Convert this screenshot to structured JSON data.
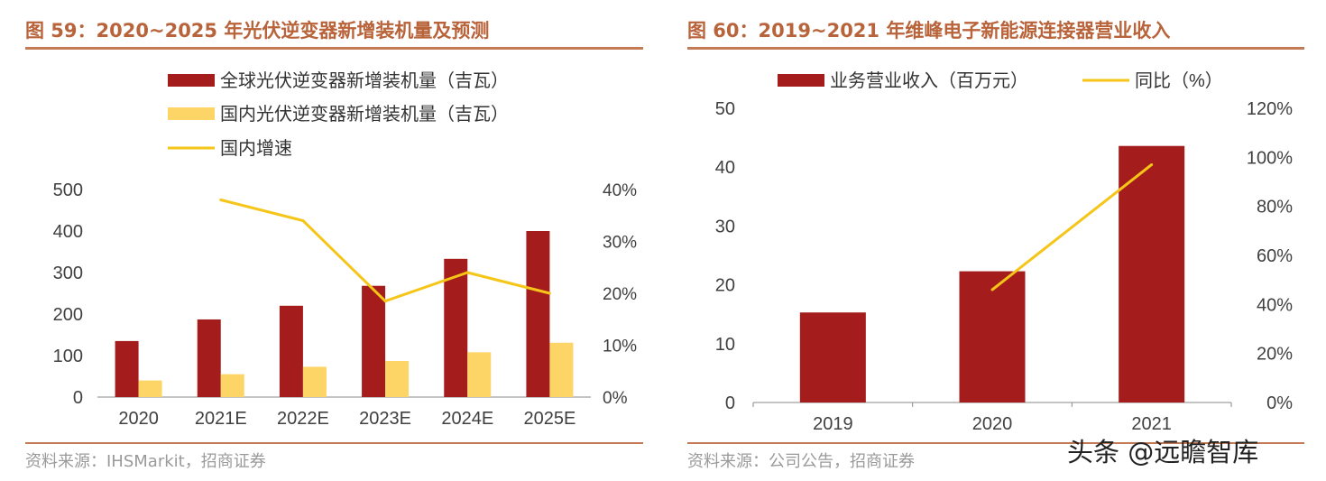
{
  "left": {
    "title": "图 59：2020~2025 年光伏逆变器新增装机量及预测",
    "source": "资料来源：IHSMarkit，招商证券"
  },
  "right": {
    "title": "图 60：2019~2021 年维峰电子新能源连接器营业收入",
    "source": "资料来源：公司公告，招商证券"
  },
  "watermark": "头条 @远瞻智库",
  "colors": {
    "bar_primary": "#a51c1c",
    "bar_secondary": "#fdd466",
    "line": "#f5c518",
    "title": "#b8633a"
  },
  "chart_data": [
    {
      "type": "bar",
      "categories": [
        "2020",
        "2021E",
        "2022E",
        "2023E",
        "2024E",
        "2025E"
      ],
      "series": [
        {
          "name": "全球光伏逆变器新增装机量（吉瓦）",
          "type": "bar",
          "axis": "left",
          "values": [
            135,
            187,
            220,
            268,
            333,
            400
          ]
        },
        {
          "name": "国内光伏逆变器新增装机量（吉瓦）",
          "type": "bar",
          "axis": "left",
          "values": [
            40,
            55,
            73,
            87,
            108,
            131
          ]
        },
        {
          "name": "国内增速",
          "type": "line",
          "axis": "right",
          "values": [
            null,
            38,
            34,
            18.5,
            24,
            20
          ]
        }
      ],
      "y_left": {
        "ticks": [
          "0",
          "100",
          "200",
          "300",
          "400",
          "500"
        ],
        "range": [
          0,
          500
        ]
      },
      "y_right": {
        "ticks": [
          "0%",
          "10%",
          "20%",
          "30%",
          "40%"
        ],
        "range": [
          0,
          40
        ]
      },
      "legend_position": "top"
    },
    {
      "type": "bar",
      "categories": [
        "2019",
        "2020",
        "2021"
      ],
      "series": [
        {
          "name": "业务营业收入（百万元）",
          "type": "bar",
          "axis": "left",
          "values": [
            15.3,
            22.3,
            43.6
          ]
        },
        {
          "name": "同比（%）",
          "type": "line",
          "axis": "right",
          "values": [
            null,
            46,
            97
          ]
        }
      ],
      "y_left": {
        "ticks": [
          "0",
          "10",
          "20",
          "30",
          "40",
          "50"
        ],
        "range": [
          0,
          50
        ]
      },
      "y_right": {
        "ticks": [
          "0%",
          "20%",
          "40%",
          "60%",
          "80%",
          "100%",
          "120%"
        ],
        "range": [
          0,
          120
        ]
      },
      "legend_position": "top"
    }
  ]
}
